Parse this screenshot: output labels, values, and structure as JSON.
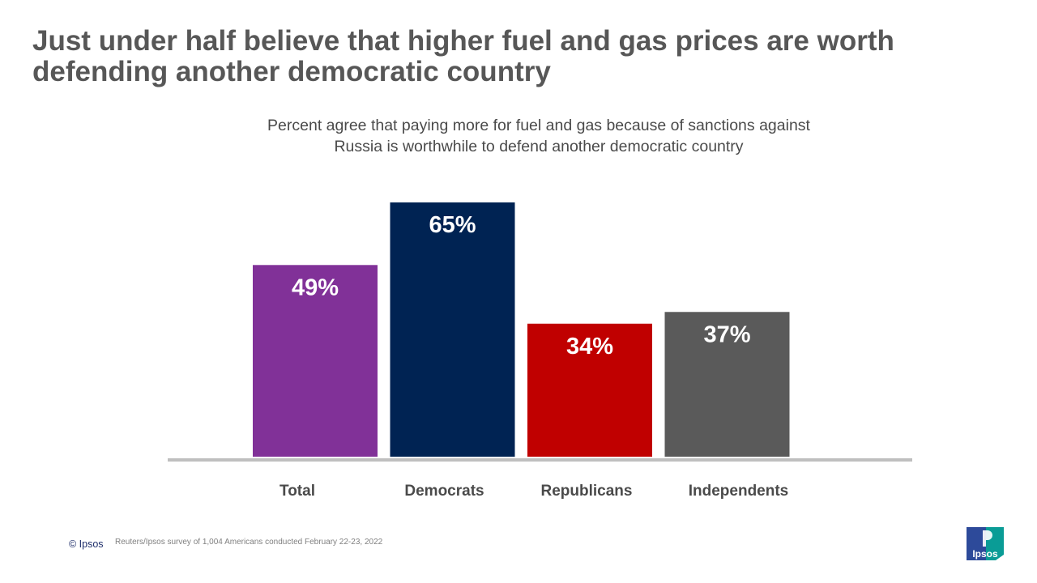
{
  "header": {
    "title": "Just under half believe that higher fuel and gas prices are worth defending another democratic country"
  },
  "chart_data": {
    "type": "bar",
    "title": "Percent agree that paying more for fuel and gas because of sanctions against Russia is worthwhile to define another democratic country",
    "categories": [
      "Total",
      "Democrats",
      "Republicans",
      "Independents"
    ],
    "values": [
      49,
      65,
      34,
      37
    ],
    "data_labels": [
      "49%",
      "65%",
      "34%",
      "37%"
    ],
    "colors": [
      "#813198",
      "#002353",
      "#c00000",
      "#5a5a5a"
    ],
    "label_color": "#ffffff",
    "axis_color": "#bfbfbf",
    "category_label_color": "#4a4a4a",
    "ylim": [
      0,
      65
    ],
    "grid": false,
    "legend": "none"
  },
  "footer": {
    "copyright": "© Ipsos",
    "source": "Reuters/Ipsos survey of 1,004 Americans conducted February 22-23, 2022"
  },
  "logo": {
    "text": "Ipsos",
    "colors": {
      "left": "#2d4a9a",
      "right": "#0a9c96"
    }
  }
}
